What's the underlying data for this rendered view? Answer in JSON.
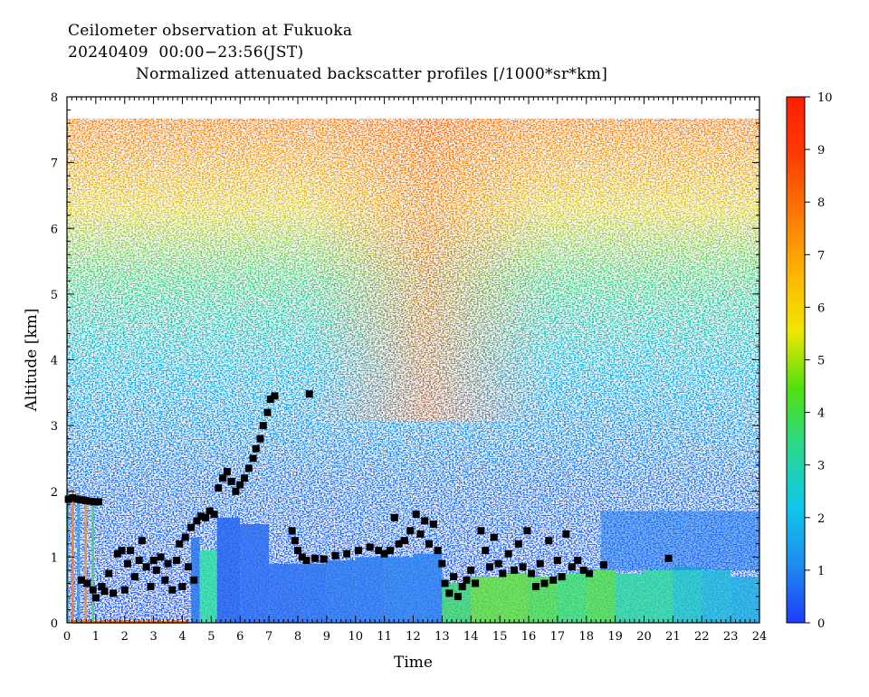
{
  "header": {
    "line1": "Ceilometer observation at Fukuoka",
    "line2": "20240409  00:00−23:56(JST)",
    "line3": "Normalized attenuated backscatter profiles [/1000*sr*km]"
  },
  "chart_data": {
    "type": "heatmap",
    "xlabel": "Time",
    "ylabel": "Altitude [km]",
    "xlim": [
      0,
      24
    ],
    "ylim": [
      0,
      8
    ],
    "x_ticks": [
      "0",
      "1",
      "2",
      "3",
      "4",
      "5",
      "6",
      "7",
      "8",
      "9",
      "10",
      "11",
      "12",
      "13",
      "14",
      "15",
      "16",
      "17",
      "18",
      "19",
      "20",
      "21",
      "22",
      "23",
      "24"
    ],
    "y_ticks": [
      "0",
      "1",
      "2",
      "3",
      "4",
      "5",
      "6",
      "7",
      "8"
    ],
    "data_top_altitude": 7.68,
    "colorbar": {
      "range": [
        0,
        10
      ],
      "ticks": [
        "0",
        "1",
        "2",
        "3",
        "4",
        "5",
        "6",
        "7",
        "8",
        "9",
        "10"
      ],
      "colors": [
        "#1e3cff",
        "#1e8cf0",
        "#10c8e8",
        "#28d890",
        "#50e010",
        "#f0e600",
        "#ffb400",
        "#ff7800",
        "#ff3c00",
        "#ff1e00"
      ]
    },
    "cloud_base": [
      [
        0.05,
        1.88
      ],
      [
        0.2,
        1.9
      ],
      [
        0.35,
        1.88
      ],
      [
        0.5,
        1.87
      ],
      [
        0.65,
        1.86
      ],
      [
        0.8,
        1.85
      ],
      [
        0.95,
        1.84
      ],
      [
        1.1,
        1.84
      ],
      [
        0.5,
        0.65
      ],
      [
        0.7,
        0.6
      ],
      [
        0.9,
        0.5
      ],
      [
        1.0,
        0.38
      ],
      [
        1.2,
        0.55
      ],
      [
        1.3,
        0.48
      ],
      [
        1.45,
        0.75
      ],
      [
        1.6,
        0.45
      ],
      [
        1.75,
        1.05
      ],
      [
        1.9,
        1.1
      ],
      [
        2.0,
        0.5
      ],
      [
        2.1,
        0.9
      ],
      [
        2.2,
        1.1
      ],
      [
        2.35,
        0.7
      ],
      [
        2.5,
        0.95
      ],
      [
        2.6,
        1.25
      ],
      [
        2.75,
        0.85
      ],
      [
        2.9,
        0.55
      ],
      [
        3.0,
        0.95
      ],
      [
        3.1,
        0.8
      ],
      [
        3.25,
        1.0
      ],
      [
        3.4,
        0.65
      ],
      [
        3.5,
        0.9
      ],
      [
        3.65,
        0.5
      ],
      [
        3.8,
        0.95
      ],
      [
        3.9,
        1.2
      ],
      [
        4.0,
        0.55
      ],
      [
        4.1,
        1.3
      ],
      [
        4.2,
        0.85
      ],
      [
        4.3,
        1.45
      ],
      [
        4.4,
        0.65
      ],
      [
        4.5,
        1.55
      ],
      [
        4.65,
        1.62
      ],
      [
        4.8,
        1.6
      ],
      [
        4.95,
        1.7
      ],
      [
        5.1,
        1.65
      ],
      [
        5.25,
        2.05
      ],
      [
        5.4,
        2.2
      ],
      [
        5.55,
        2.3
      ],
      [
        5.7,
        2.15
      ],
      [
        5.85,
        2.0
      ],
      [
        6.0,
        2.1
      ],
      [
        6.15,
        2.2
      ],
      [
        6.3,
        2.35
      ],
      [
        6.45,
        2.5
      ],
      [
        6.55,
        2.65
      ],
      [
        6.7,
        2.8
      ],
      [
        6.8,
        3.0
      ],
      [
        6.95,
        3.2
      ],
      [
        7.05,
        3.4
      ],
      [
        7.2,
        3.45
      ],
      [
        8.4,
        3.48
      ],
      [
        7.8,
        1.4
      ],
      [
        7.9,
        1.25
      ],
      [
        8.0,
        1.1
      ],
      [
        8.15,
        1.0
      ],
      [
        8.3,
        0.95
      ],
      [
        8.6,
        0.98
      ],
      [
        8.9,
        0.97
      ],
      [
        9.3,
        1.02
      ],
      [
        9.7,
        1.05
      ],
      [
        10.1,
        1.1
      ],
      [
        10.5,
        1.15
      ],
      [
        10.8,
        1.1
      ],
      [
        11.0,
        1.05
      ],
      [
        11.2,
        1.1
      ],
      [
        11.35,
        1.6
      ],
      [
        11.5,
        1.2
      ],
      [
        11.7,
        1.25
      ],
      [
        11.9,
        1.4
      ],
      [
        12.1,
        1.65
      ],
      [
        12.25,
        1.35
      ],
      [
        12.4,
        1.55
      ],
      [
        12.55,
        1.2
      ],
      [
        12.7,
        1.5
      ],
      [
        12.85,
        1.1
      ],
      [
        13.0,
        0.9
      ],
      [
        13.1,
        0.6
      ],
      [
        13.25,
        0.45
      ],
      [
        13.4,
        0.7
      ],
      [
        13.55,
        0.4
      ],
      [
        13.7,
        0.55
      ],
      [
        13.85,
        0.65
      ],
      [
        14.0,
        0.8
      ],
      [
        14.15,
        0.6
      ],
      [
        14.35,
        1.4
      ],
      [
        14.5,
        1.1
      ],
      [
        14.65,
        0.85
      ],
      [
        14.8,
        1.3
      ],
      [
        14.95,
        0.9
      ],
      [
        15.1,
        0.75
      ],
      [
        15.3,
        1.05
      ],
      [
        15.5,
        0.8
      ],
      [
        15.65,
        1.2
      ],
      [
        15.8,
        0.85
      ],
      [
        15.95,
        1.4
      ],
      [
        16.1,
        0.75
      ],
      [
        16.25,
        0.55
      ],
      [
        16.4,
        0.9
      ],
      [
        16.55,
        0.6
      ],
      [
        16.7,
        1.25
      ],
      [
        16.85,
        0.65
      ],
      [
        17.0,
        0.95
      ],
      [
        17.15,
        0.7
      ],
      [
        17.3,
        1.35
      ],
      [
        17.5,
        0.85
      ],
      [
        17.7,
        0.95
      ],
      [
        17.9,
        0.8
      ],
      [
        18.1,
        0.75
      ],
      [
        18.6,
        0.88
      ],
      [
        20.85,
        0.98
      ]
    ]
  }
}
